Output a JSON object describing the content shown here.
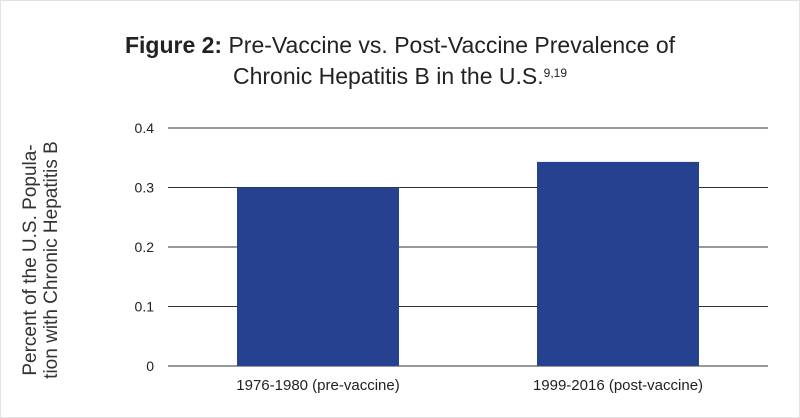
{
  "chart_data": {
    "type": "bar",
    "title_prefix": "Figure 2:",
    "title_line1": "Pre-Vaccine vs. Post-Vaccine Prevalence of",
    "title_line2": "Chronic Hepatitis B in the U.S.",
    "title_sup": "9,19",
    "ylabel_line1": "Percent of the U.S. Popula-",
    "ylabel_line2": "tion with Chronic Hepatitis B",
    "xlabel": "",
    "categories": [
      "1976-1980 (pre-vaccine)",
      "1999-2016 (post-vaccine)"
    ],
    "values": [
      0.3,
      0.343
    ],
    "ylim": [
      0,
      0.4
    ],
    "yticks": [
      "0",
      "0.1",
      "0.2",
      "0.3",
      "0.4"
    ],
    "grid": true,
    "bar_color": "#25418f",
    "grid_color": "#333333"
  }
}
